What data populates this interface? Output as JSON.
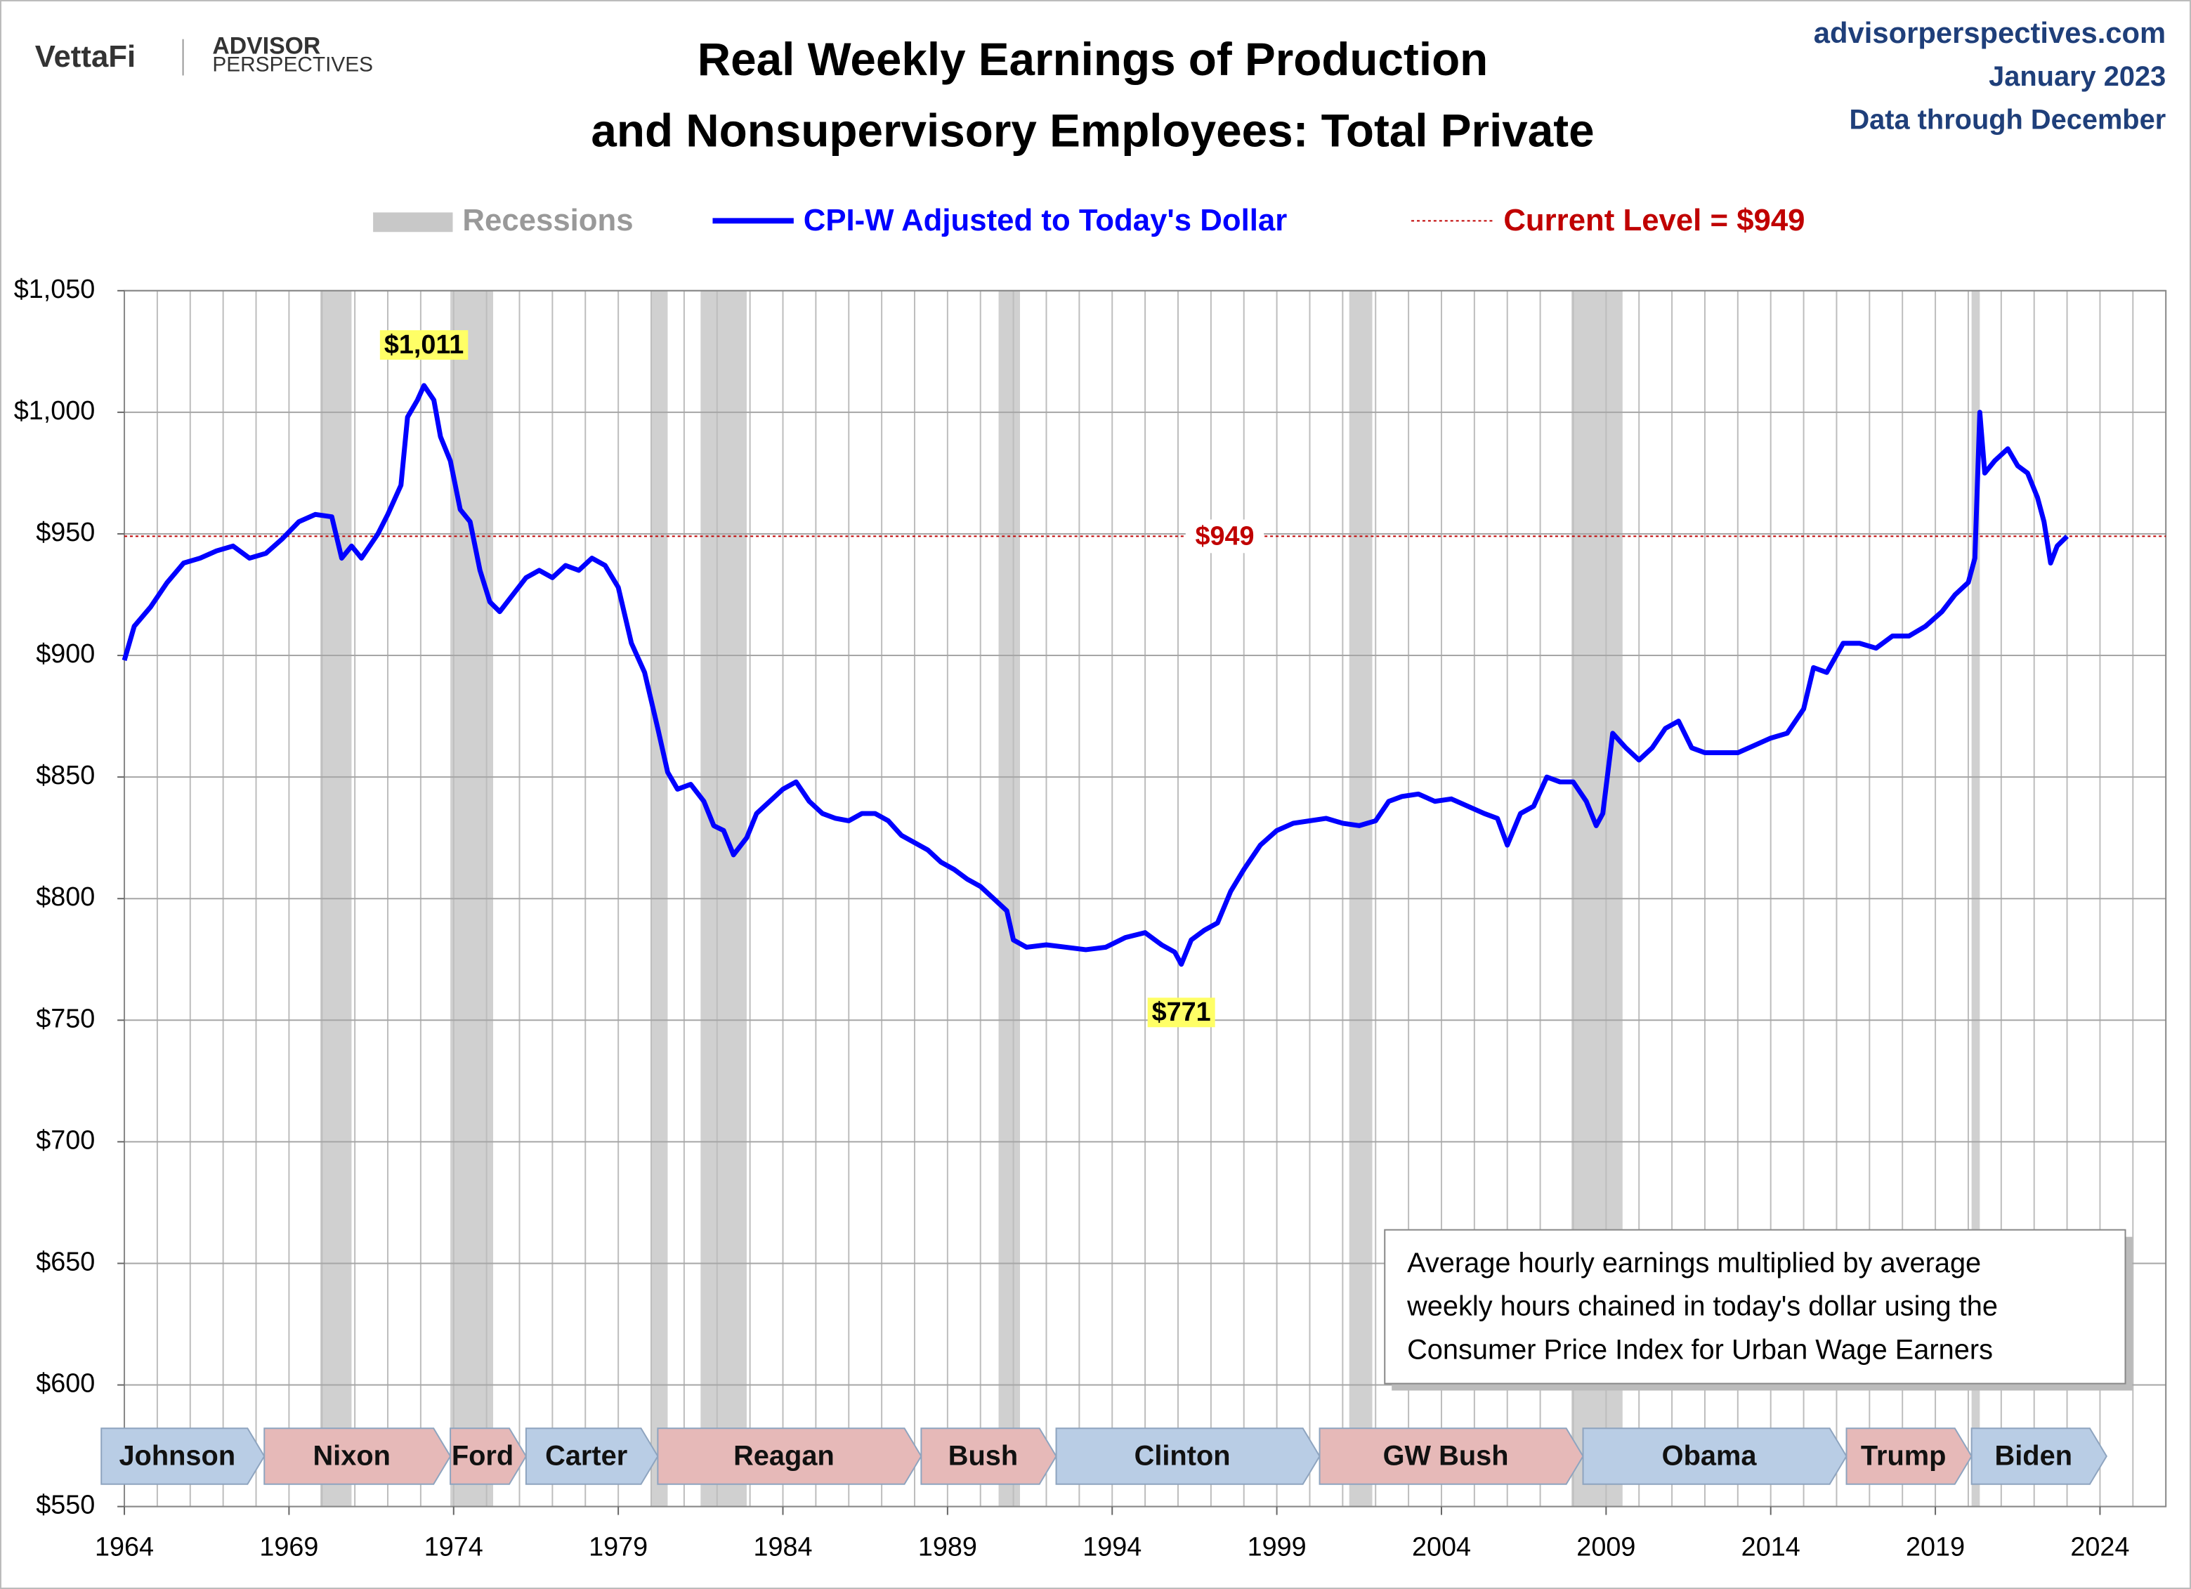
{
  "header": {
    "logo": "VettaFi",
    "brand_top": "ADVISOR",
    "brand_bottom": "PERSPECTIVES",
    "site": "advisorperspectives.com",
    "date": "January 2023",
    "data_through": "Data through December"
  },
  "chart_data": {
    "type": "line",
    "title": [
      "Real Weekly Earnings of Production",
      "and Nonsupervisory Employees: Total Private"
    ],
    "xlim": [
      1964,
      2026
    ],
    "xticks": [
      1964,
      1969,
      1974,
      1979,
      1984,
      1989,
      1994,
      1999,
      2004,
      2009,
      2014,
      2019,
      2024
    ],
    "xminorticks": [
      1965,
      1966,
      1967,
      1968,
      1970,
      1971,
      1972,
      1973,
      1975,
      1976,
      1977,
      1978,
      1980,
      1981,
      1982,
      1983,
      1985,
      1986,
      1987,
      1988,
      1990,
      1991,
      1992,
      1993,
      1995,
      1996,
      1997,
      1998,
      2000,
      2001,
      2002,
      2003,
      2005,
      2006,
      2007,
      2008,
      2010,
      2011,
      2012,
      2013,
      2015,
      2016,
      2017,
      2018,
      2020,
      2021,
      2022,
      2023,
      2025
    ],
    "ylim": [
      550,
      1050
    ],
    "yticks": [
      {
        "value": 550,
        "label": "$550"
      },
      {
        "value": 600,
        "label": "$600"
      },
      {
        "value": 650,
        "label": "$650"
      },
      {
        "value": 700,
        "label": "$700"
      },
      {
        "value": 750,
        "label": "$750"
      },
      {
        "value": 800,
        "label": "$800"
      },
      {
        "value": 850,
        "label": "$850"
      },
      {
        "value": 900,
        "label": "$900"
      },
      {
        "value": 950,
        "label": "$950"
      },
      {
        "value": 1000,
        "label": "$1,000"
      },
      {
        "value": 1050,
        "label": "$1,050"
      }
    ],
    "grid": true,
    "series": [
      {
        "name": "CPI-W Adjusted to Today's Dollar",
        "color": "#0000ff",
        "x": [
          1964.0,
          1964.3,
          1964.8,
          1965.3,
          1965.8,
          1966.3,
          1966.8,
          1967.3,
          1967.8,
          1968.3,
          1968.8,
          1969.3,
          1969.8,
          1970.3,
          1970.6,
          1970.9,
          1971.2,
          1971.7,
          1972.0,
          1972.4,
          1972.6,
          1972.9,
          1973.1,
          1973.4,
          1973.6,
          1973.9,
          1974.2,
          1974.5,
          1974.8,
          1975.1,
          1975.4,
          1975.8,
          1976.2,
          1976.6,
          1977.0,
          1977.4,
          1977.8,
          1978.2,
          1978.6,
          1979.0,
          1979.4,
          1979.8,
          1980.2,
          1980.5,
          1980.8,
          1981.2,
          1981.6,
          1981.9,
          1982.2,
          1982.5,
          1982.9,
          1983.2,
          1983.6,
          1984.0,
          1984.4,
          1984.8,
          1985.2,
          1985.6,
          1986.0,
          1986.4,
          1986.8,
          1987.2,
          1987.6,
          1988.0,
          1988.4,
          1988.8,
          1989.2,
          1989.6,
          1990.0,
          1990.4,
          1990.8,
          1991.0,
          1991.4,
          1992.0,
          1992.6,
          1993.2,
          1993.8,
          1994.4,
          1995.0,
          1995.5,
          1995.9,
          1996.1,
          1996.4,
          1996.8,
          1997.2,
          1997.6,
          1998.0,
          1998.5,
          1999.0,
          1999.5,
          2000.0,
          2000.5,
          2001.0,
          2001.5,
          2002.0,
          2002.4,
          2002.8,
          2003.3,
          2003.8,
          2004.3,
          2004.8,
          2005.3,
          2005.7,
          2006.0,
          2006.4,
          2006.8,
          2007.2,
          2007.6,
          2008.0,
          2008.4,
          2008.7,
          2008.9,
          2009.2,
          2009.6,
          2010.0,
          2010.4,
          2010.8,
          2011.2,
          2011.6,
          2012.0,
          2012.5,
          2013.0,
          2013.5,
          2014.0,
          2014.5,
          2015.0,
          2015.3,
          2015.7,
          2016.2,
          2016.7,
          2017.2,
          2017.7,
          2018.2,
          2018.7,
          2019.2,
          2019.6,
          2020.0,
          2020.2,
          2020.35,
          2020.5,
          2020.8,
          2021.2,
          2021.5,
          2021.8,
          2022.1,
          2022.3,
          2022.5,
          2022.7,
          2023.0
        ],
        "values": [
          898,
          912,
          920,
          930,
          938,
          940,
          943,
          945,
          940,
          942,
          948,
          955,
          958,
          957,
          940,
          945,
          940,
          950,
          958,
          970,
          998,
          1005,
          1011,
          1005,
          990,
          980,
          960,
          955,
          935,
          922,
          918,
          925,
          932,
          935,
          932,
          937,
          935,
          940,
          937,
          928,
          905,
          893,
          870,
          852,
          845,
          847,
          840,
          830,
          828,
          818,
          825,
          835,
          840,
          845,
          848,
          840,
          835,
          833,
          832,
          835,
          835,
          832,
          826,
          823,
          820,
          815,
          812,
          808,
          805,
          800,
          795,
          783,
          780,
          781,
          780,
          779,
          780,
          784,
          786,
          781,
          778,
          773,
          783,
          787,
          790,
          803,
          812,
          822,
          828,
          831,
          832,
          833,
          831,
          830,
          832,
          840,
          842,
          843,
          840,
          841,
          838,
          835,
          833,
          822,
          835,
          838,
          850,
          848,
          848,
          840,
          830,
          835,
          868,
          862,
          857,
          862,
          870,
          873,
          862,
          860,
          860,
          860,
          863,
          866,
          868,
          878,
          895,
          893,
          905,
          905,
          903,
          908,
          908,
          912,
          918,
          925,
          930,
          940,
          1000,
          975,
          980,
          985,
          978,
          975,
          965,
          955,
          938,
          945,
          949
        ]
      }
    ],
    "recessions": {
      "name": "Recessions",
      "color": "#c8c8c8",
      "periods": [
        [
          1969.95,
          1970.9
        ],
        [
          1973.9,
          1975.2
        ],
        [
          1980.0,
          1980.5
        ],
        [
          1981.5,
          1982.9
        ],
        [
          1990.55,
          1991.2
        ],
        [
          2001.2,
          2001.9
        ],
        [
          2007.95,
          2009.5
        ],
        [
          2020.1,
          2020.35
        ]
      ]
    },
    "reference_line": {
      "name": "Current Level = $949",
      "value": 949,
      "label": "$949",
      "color": "#c00000"
    },
    "annotations": [
      {
        "label": "$1,011",
        "x": 1973.1,
        "value": 1011,
        "position": "above"
      },
      {
        "label": "$771",
        "x": 1996.1,
        "value": 771,
        "position": "below"
      }
    ],
    "presidents": [
      {
        "name": "Johnson",
        "start": 1963.3,
        "end": 1968.25,
        "color": "#b9cde5"
      },
      {
        "name": "Nixon",
        "start": 1968.25,
        "end": 1973.9,
        "color": "#e6b9b8"
      },
      {
        "name": "Ford",
        "start": 1973.9,
        "end": 1976.2,
        "color": "#e6b9b8"
      },
      {
        "name": "Carter",
        "start": 1976.2,
        "end": 1980.2,
        "color": "#b9cde5"
      },
      {
        "name": "Reagan",
        "start": 1980.2,
        "end": 1988.2,
        "color": "#e6b9b8"
      },
      {
        "name": "Bush",
        "start": 1988.2,
        "end": 1992.3,
        "color": "#e6b9b8"
      },
      {
        "name": "Clinton",
        "start": 1992.3,
        "end": 2000.3,
        "color": "#b9cde5"
      },
      {
        "name": "GW Bush",
        "start": 2000.3,
        "end": 2008.3,
        "color": "#e6b9b8"
      },
      {
        "name": "Obama",
        "start": 2008.3,
        "end": 2016.3,
        "color": "#b9cde5"
      },
      {
        "name": "Trump",
        "start": 2016.3,
        "end": 2020.1,
        "color": "#e6b9b8"
      },
      {
        "name": "Biden",
        "start": 2020.1,
        "end": 2024.2,
        "color": "#b9cde5"
      }
    ],
    "note": [
      "Average hourly earnings multiplied by average",
      "weekly hours chained in today's dollar using the",
      "Consumer Price Index for Urban Wage Earners"
    ]
  }
}
